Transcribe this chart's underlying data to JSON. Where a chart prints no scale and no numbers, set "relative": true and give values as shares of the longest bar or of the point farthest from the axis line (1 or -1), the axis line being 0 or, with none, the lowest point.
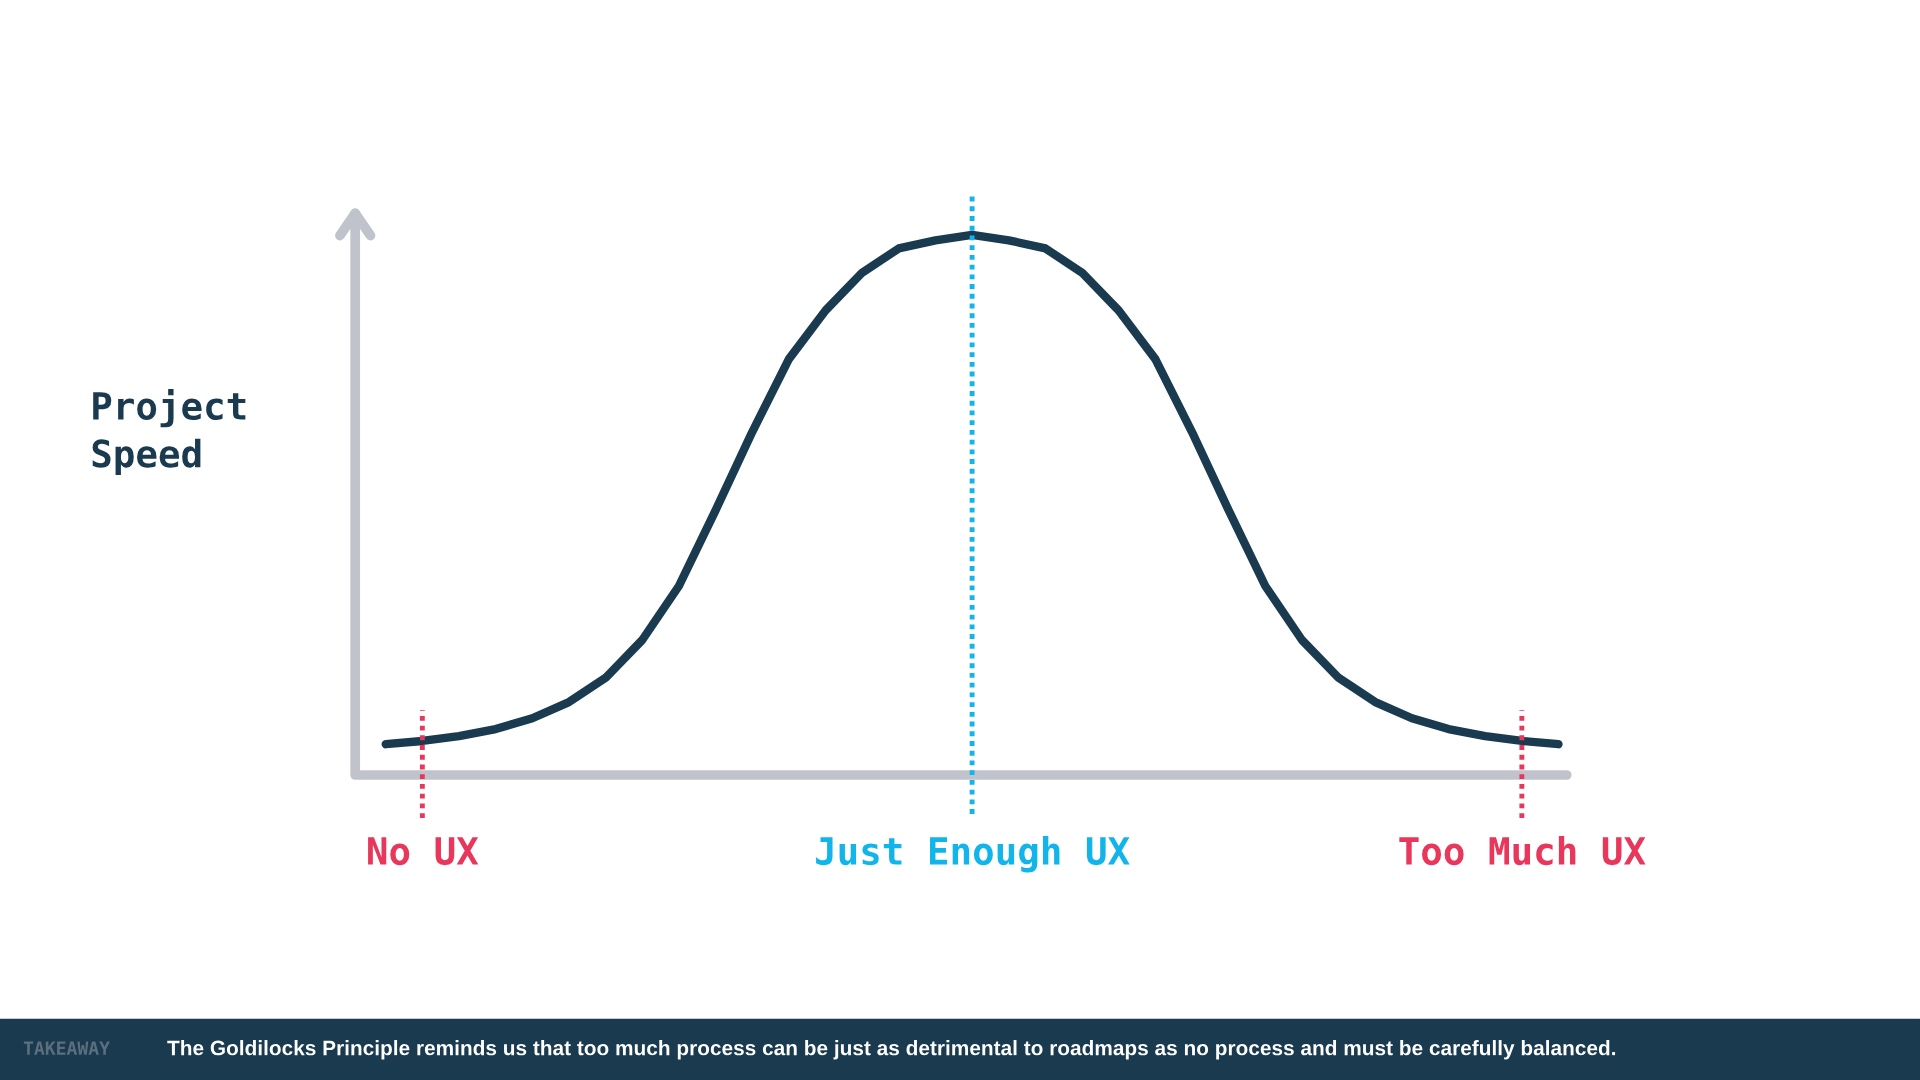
{
  "chart_data": {
    "type": "line",
    "relative": true,
    "ylabel": "Project Speed",
    "categories": [
      null,
      "No UX",
      null,
      null,
      null,
      null,
      null,
      null,
      null,
      null,
      null,
      null,
      null,
      null,
      null,
      null,
      "Just Enough UX",
      null,
      null,
      null,
      null,
      null,
      null,
      null,
      null,
      null,
      null,
      null,
      null,
      null,
      null,
      "Too Much UX",
      null
    ],
    "tick_labels": "x",
    "grid": false,
    "legend": false,
    "marker": "none",
    "line_style": "solid",
    "series": [
      {
        "color": "#1a3a4f",
        "values": [
          0.057,
          0.063,
          0.072,
          0.085,
          0.105,
          0.135,
          0.18,
          0.25,
          0.35,
          0.49,
          0.635,
          0.77,
          0.86,
          0.93,
          0.975,
          0.99,
          1.0,
          0.99,
          0.975,
          0.93,
          0.86,
          0.77,
          0.635,
          0.49,
          0.35,
          0.25,
          0.18,
          0.135,
          0.105,
          0.085,
          0.072,
          0.063,
          0.057
        ]
      }
    ],
    "ref_lines": [
      {
        "axis": "x",
        "value": "No UX",
        "color": "#e8375a",
        "line_style": "dotted"
      },
      {
        "axis": "x",
        "value": "Just Enough UX",
        "color": "#12b5ea",
        "line_style": "dotted"
      },
      {
        "axis": "x",
        "value": "Too Much UX",
        "color": "#e8375a",
        "line_style": "dotted"
      }
    ],
    "annotations": [
      "TAKEAWAY",
      "The Goldilocks Principle reminds us that too much process can be just as detrimental to roadmaps as no process and must be carefully balanced."
    ]
  }
}
